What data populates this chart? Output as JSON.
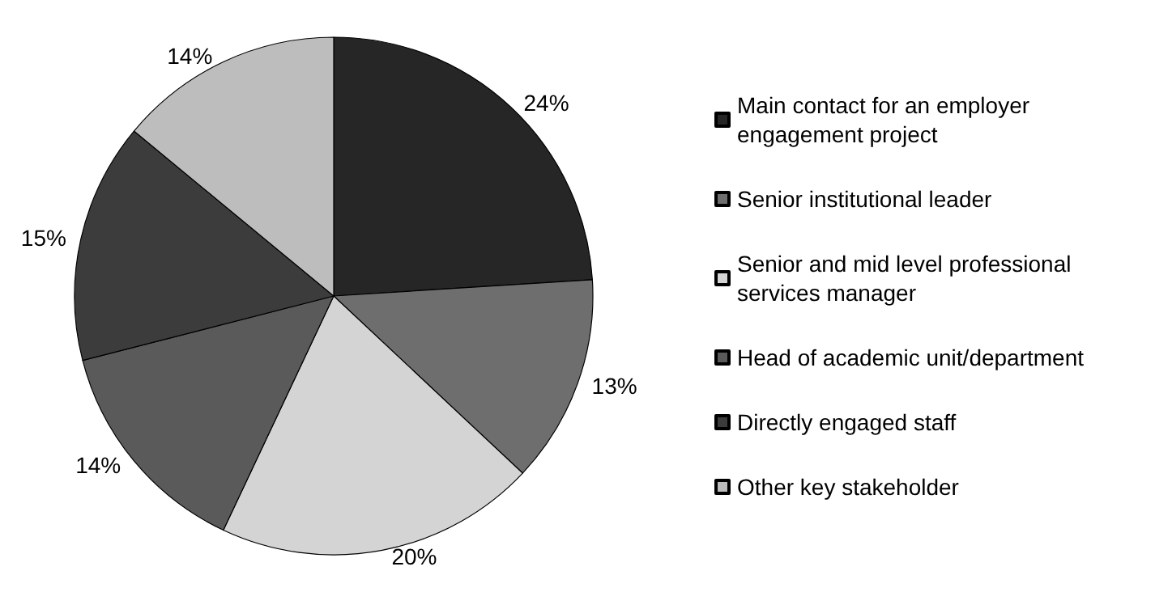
{
  "chart_data": {
    "type": "pie",
    "categories": [
      "Main contact for an employer engagement project",
      "Senior institutional leader",
      "Senior and mid level professional services manager",
      "Head of academic unit/department",
      "Directly engaged staff",
      "Other key stakeholder"
    ],
    "values": [
      24,
      13,
      20,
      14,
      15,
      14
    ],
    "colors": [
      "#262626",
      "#6e6e6e",
      "#d4d4d4",
      "#5a5a5a",
      "#3c3c3c",
      "#bdbdbd"
    ],
    "value_labels": [
      "24%",
      "13%",
      "20%",
      "14%",
      "15%",
      "14%"
    ],
    "legend": "right"
  }
}
